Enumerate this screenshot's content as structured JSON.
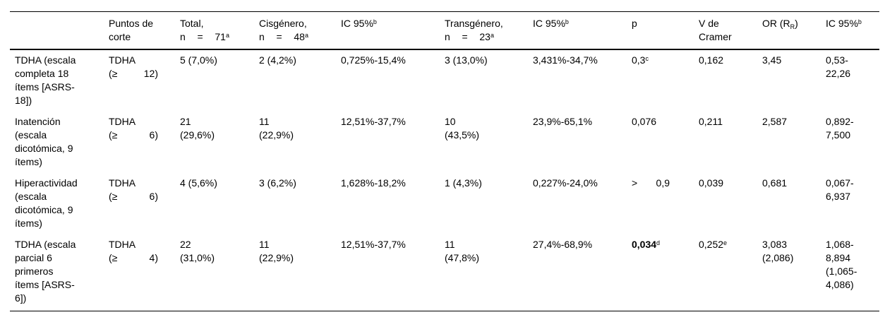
{
  "colors": {
    "text": "#000000",
    "background": "#ffffff",
    "rule": "#000000"
  },
  "table": {
    "header": {
      "cells": [
        {
          "lines": []
        },
        {
          "lines": [
            {
              "runs": [
                {
                  "t": "Puntos de"
                }
              ]
            },
            {
              "runs": [
                {
                  "t": "corte"
                }
              ]
            }
          ]
        },
        {
          "lines": [
            {
              "runs": [
                {
                  "t": "Total,"
                }
              ]
            },
            {
              "runs": [
                {
                  "t": "n = 71"
                },
                {
                  "t": "a",
                  "s": "sup"
                }
              ],
              "spread": true
            }
          ]
        },
        {
          "lines": [
            {
              "runs": [
                {
                  "t": "Cisgénero,"
                }
              ]
            },
            {
              "runs": [
                {
                  "t": "n = 48"
                },
                {
                  "t": "a",
                  "s": "sup"
                }
              ],
              "spread": true
            }
          ]
        },
        {
          "lines": [
            {
              "runs": [
                {
                  "t": "IC 95%"
                },
                {
                  "t": "b",
                  "s": "sup"
                }
              ]
            }
          ]
        },
        {
          "lines": [
            {
              "runs": [
                {
                  "t": "Transgénero,"
                }
              ]
            },
            {
              "runs": [
                {
                  "t": "n = 23"
                },
                {
                  "t": "a",
                  "s": "sup"
                }
              ],
              "spread": true
            }
          ]
        },
        {
          "lines": [
            {
              "runs": [
                {
                  "t": "IC 95%"
                },
                {
                  "t": "b",
                  "s": "sup"
                }
              ]
            }
          ]
        },
        {
          "lines": [
            {
              "runs": [
                {
                  "t": "p"
                }
              ]
            }
          ]
        },
        {
          "lines": [
            {
              "runs": [
                {
                  "t": "V de"
                }
              ]
            },
            {
              "runs": [
                {
                  "t": "Cramer"
                }
              ]
            }
          ]
        },
        {
          "lines": [
            {
              "runs": [
                {
                  "t": "OR (R"
                },
                {
                  "t": "R",
                  "s": "sub"
                },
                {
                  "t": ")"
                }
              ]
            }
          ]
        },
        {
          "lines": [
            {
              "runs": [
                {
                  "t": "IC 95%"
                },
                {
                  "t": "b",
                  "s": "sup"
                }
              ]
            }
          ]
        }
      ]
    },
    "rows": [
      {
        "cells": [
          {
            "lines": [
              {
                "runs": [
                  {
                    "t": "TDHA (escala"
                  }
                ]
              },
              {
                "runs": [
                  {
                    "t": "completa 18"
                  }
                ]
              },
              {
                "runs": [
                  {
                    "t": "ítems [ASRS-"
                  }
                ]
              },
              {
                "runs": [
                  {
                    "t": "18])"
                  }
                ]
              }
            ]
          },
          {
            "lines": [
              {
                "runs": [
                  {
                    "t": "TDHA"
                  }
                ]
              },
              {
                "runs": [
                  {
                    "t": "(≥ 12)"
                  }
                ],
                "spread": true
              }
            ]
          },
          {
            "lines": [
              {
                "runs": [
                  {
                    "t": "5 (7,0%)"
                  }
                ]
              }
            ]
          },
          {
            "lines": [
              {
                "runs": [
                  {
                    "t": "2 (4,2%)"
                  }
                ]
              }
            ]
          },
          {
            "lines": [
              {
                "runs": [
                  {
                    "t": "0,725%-15,4%"
                  }
                ]
              }
            ]
          },
          {
            "lines": [
              {
                "runs": [
                  {
                    "t": "3 (13,0%)"
                  }
                ]
              }
            ]
          },
          {
            "lines": [
              {
                "runs": [
                  {
                    "t": "3,431%-34,7%"
                  }
                ]
              }
            ]
          },
          {
            "lines": [
              {
                "runs": [
                  {
                    "t": "0,3"
                  },
                  {
                    "t": "c",
                    "s": "sup"
                  }
                ]
              }
            ]
          },
          {
            "lines": [
              {
                "runs": [
                  {
                    "t": "0,162"
                  }
                ]
              }
            ]
          },
          {
            "lines": [
              {
                "runs": [
                  {
                    "t": "3,45"
                  }
                ]
              }
            ]
          },
          {
            "lines": [
              {
                "runs": [
                  {
                    "t": "0,53-"
                  }
                ]
              },
              {
                "runs": [
                  {
                    "t": "22,26"
                  }
                ]
              }
            ]
          }
        ]
      },
      {
        "cells": [
          {
            "lines": [
              {
                "runs": [
                  {
                    "t": "Inatención"
                  }
                ]
              },
              {
                "runs": [
                  {
                    "t": "(escala"
                  }
                ]
              },
              {
                "runs": [
                  {
                    "t": "dicotómica, 9"
                  }
                ]
              },
              {
                "runs": [
                  {
                    "t": "ítems)"
                  }
                ]
              }
            ]
          },
          {
            "lines": [
              {
                "runs": [
                  {
                    "t": "TDHA"
                  }
                ]
              },
              {
                "runs": [
                  {
                    "t": "(≥ 6)"
                  }
                ],
                "spread": true
              }
            ]
          },
          {
            "lines": [
              {
                "runs": [
                  {
                    "t": "21"
                  }
                ]
              },
              {
                "runs": [
                  {
                    "t": "(29,6%)"
                  }
                ]
              }
            ]
          },
          {
            "lines": [
              {
                "runs": [
                  {
                    "t": "11"
                  }
                ]
              },
              {
                "runs": [
                  {
                    "t": "(22,9%)"
                  }
                ]
              }
            ]
          },
          {
            "lines": [
              {
                "runs": [
                  {
                    "t": "12,51%-37,7%"
                  }
                ]
              }
            ]
          },
          {
            "lines": [
              {
                "runs": [
                  {
                    "t": "10"
                  }
                ]
              },
              {
                "runs": [
                  {
                    "t": "(43,5%)"
                  }
                ]
              }
            ]
          },
          {
            "lines": [
              {
                "runs": [
                  {
                    "t": "23,9%-65,1%"
                  }
                ]
              }
            ]
          },
          {
            "lines": [
              {
                "runs": [
                  {
                    "t": "0,076"
                  }
                ]
              }
            ]
          },
          {
            "lines": [
              {
                "runs": [
                  {
                    "t": "0,211"
                  }
                ]
              }
            ]
          },
          {
            "lines": [
              {
                "runs": [
                  {
                    "t": "2,587"
                  }
                ]
              }
            ]
          },
          {
            "lines": [
              {
                "runs": [
                  {
                    "t": "0,892-"
                  }
                ]
              },
              {
                "runs": [
                  {
                    "t": "7,500"
                  }
                ]
              }
            ]
          }
        ]
      },
      {
        "cells": [
          {
            "lines": [
              {
                "runs": [
                  {
                    "t": "Hiperactividad"
                  }
                ]
              },
              {
                "runs": [
                  {
                    "t": "(escala"
                  }
                ]
              },
              {
                "runs": [
                  {
                    "t": "dicotómica, 9"
                  }
                ]
              },
              {
                "runs": [
                  {
                    "t": "ítems)"
                  }
                ]
              }
            ]
          },
          {
            "lines": [
              {
                "runs": [
                  {
                    "t": "TDHA"
                  }
                ]
              },
              {
                "runs": [
                  {
                    "t": "(≥ 6)"
                  }
                ],
                "spread": true
              }
            ]
          },
          {
            "lines": [
              {
                "runs": [
                  {
                    "t": "4 (5,6%)"
                  }
                ]
              }
            ]
          },
          {
            "lines": [
              {
                "runs": [
                  {
                    "t": "3 (6,2%)"
                  }
                ]
              }
            ]
          },
          {
            "lines": [
              {
                "runs": [
                  {
                    "t": "1,628%-18,2%"
                  }
                ]
              }
            ]
          },
          {
            "lines": [
              {
                "runs": [
                  {
                    "t": "1 (4,3%)"
                  }
                ]
              }
            ]
          },
          {
            "lines": [
              {
                "runs": [
                  {
                    "t": "0,227%-24,0%"
                  }
                ]
              }
            ]
          },
          {
            "lines": [
              {
                "runs": [
                  {
                    "t": "> 0,9"
                  }
                ],
                "spread": true
              }
            ]
          },
          {
            "lines": [
              {
                "runs": [
                  {
                    "t": "0,039"
                  }
                ]
              }
            ]
          },
          {
            "lines": [
              {
                "runs": [
                  {
                    "t": "0,681"
                  }
                ]
              }
            ]
          },
          {
            "lines": [
              {
                "runs": [
                  {
                    "t": "0,067-"
                  }
                ]
              },
              {
                "runs": [
                  {
                    "t": "6,937"
                  }
                ]
              }
            ]
          }
        ]
      },
      {
        "cells": [
          {
            "lines": [
              {
                "runs": [
                  {
                    "t": "TDHA (escala"
                  }
                ]
              },
              {
                "runs": [
                  {
                    "t": "parcial 6"
                  }
                ]
              },
              {
                "runs": [
                  {
                    "t": "primeros"
                  }
                ]
              },
              {
                "runs": [
                  {
                    "t": "ítems [ASRS-"
                  }
                ]
              },
              {
                "runs": [
                  {
                    "t": "6])"
                  }
                ]
              }
            ]
          },
          {
            "lines": [
              {
                "runs": [
                  {
                    "t": "TDHA"
                  }
                ]
              },
              {
                "runs": [
                  {
                    "t": "(≥ 4)"
                  }
                ],
                "spread": true
              }
            ]
          },
          {
            "lines": [
              {
                "runs": [
                  {
                    "t": "22"
                  }
                ]
              },
              {
                "runs": [
                  {
                    "t": "(31,0%)"
                  }
                ]
              }
            ]
          },
          {
            "lines": [
              {
                "runs": [
                  {
                    "t": "11"
                  }
                ]
              },
              {
                "runs": [
                  {
                    "t": "(22,9%)"
                  }
                ]
              }
            ]
          },
          {
            "lines": [
              {
                "runs": [
                  {
                    "t": "12,51%-37,7%"
                  }
                ]
              }
            ]
          },
          {
            "lines": [
              {
                "runs": [
                  {
                    "t": "11"
                  }
                ]
              },
              {
                "runs": [
                  {
                    "t": "(47,8%)"
                  }
                ]
              }
            ]
          },
          {
            "lines": [
              {
                "runs": [
                  {
                    "t": "27,4%-68,9%"
                  }
                ]
              }
            ]
          },
          {
            "lines": [
              {
                "runs": [
                  {
                    "t": "0,034",
                    "b": true
                  },
                  {
                    "t": "d",
                    "s": "sup"
                  }
                ]
              }
            ]
          },
          {
            "lines": [
              {
                "runs": [
                  {
                    "t": "0,252"
                  },
                  {
                    "t": "e",
                    "s": "sup"
                  }
                ]
              }
            ]
          },
          {
            "lines": [
              {
                "runs": [
                  {
                    "t": "3,083"
                  }
                ]
              },
              {
                "runs": [
                  {
                    "t": "(2,086)"
                  }
                ]
              }
            ]
          },
          {
            "lines": [
              {
                "runs": [
                  {
                    "t": "1,068-"
                  }
                ]
              },
              {
                "runs": [
                  {
                    "t": "8,894"
                  }
                ]
              },
              {
                "runs": [
                  {
                    "t": "(1,065-"
                  }
                ]
              },
              {
                "runs": [
                  {
                    "t": "4,086)"
                  }
                ]
              }
            ]
          }
        ]
      }
    ]
  }
}
